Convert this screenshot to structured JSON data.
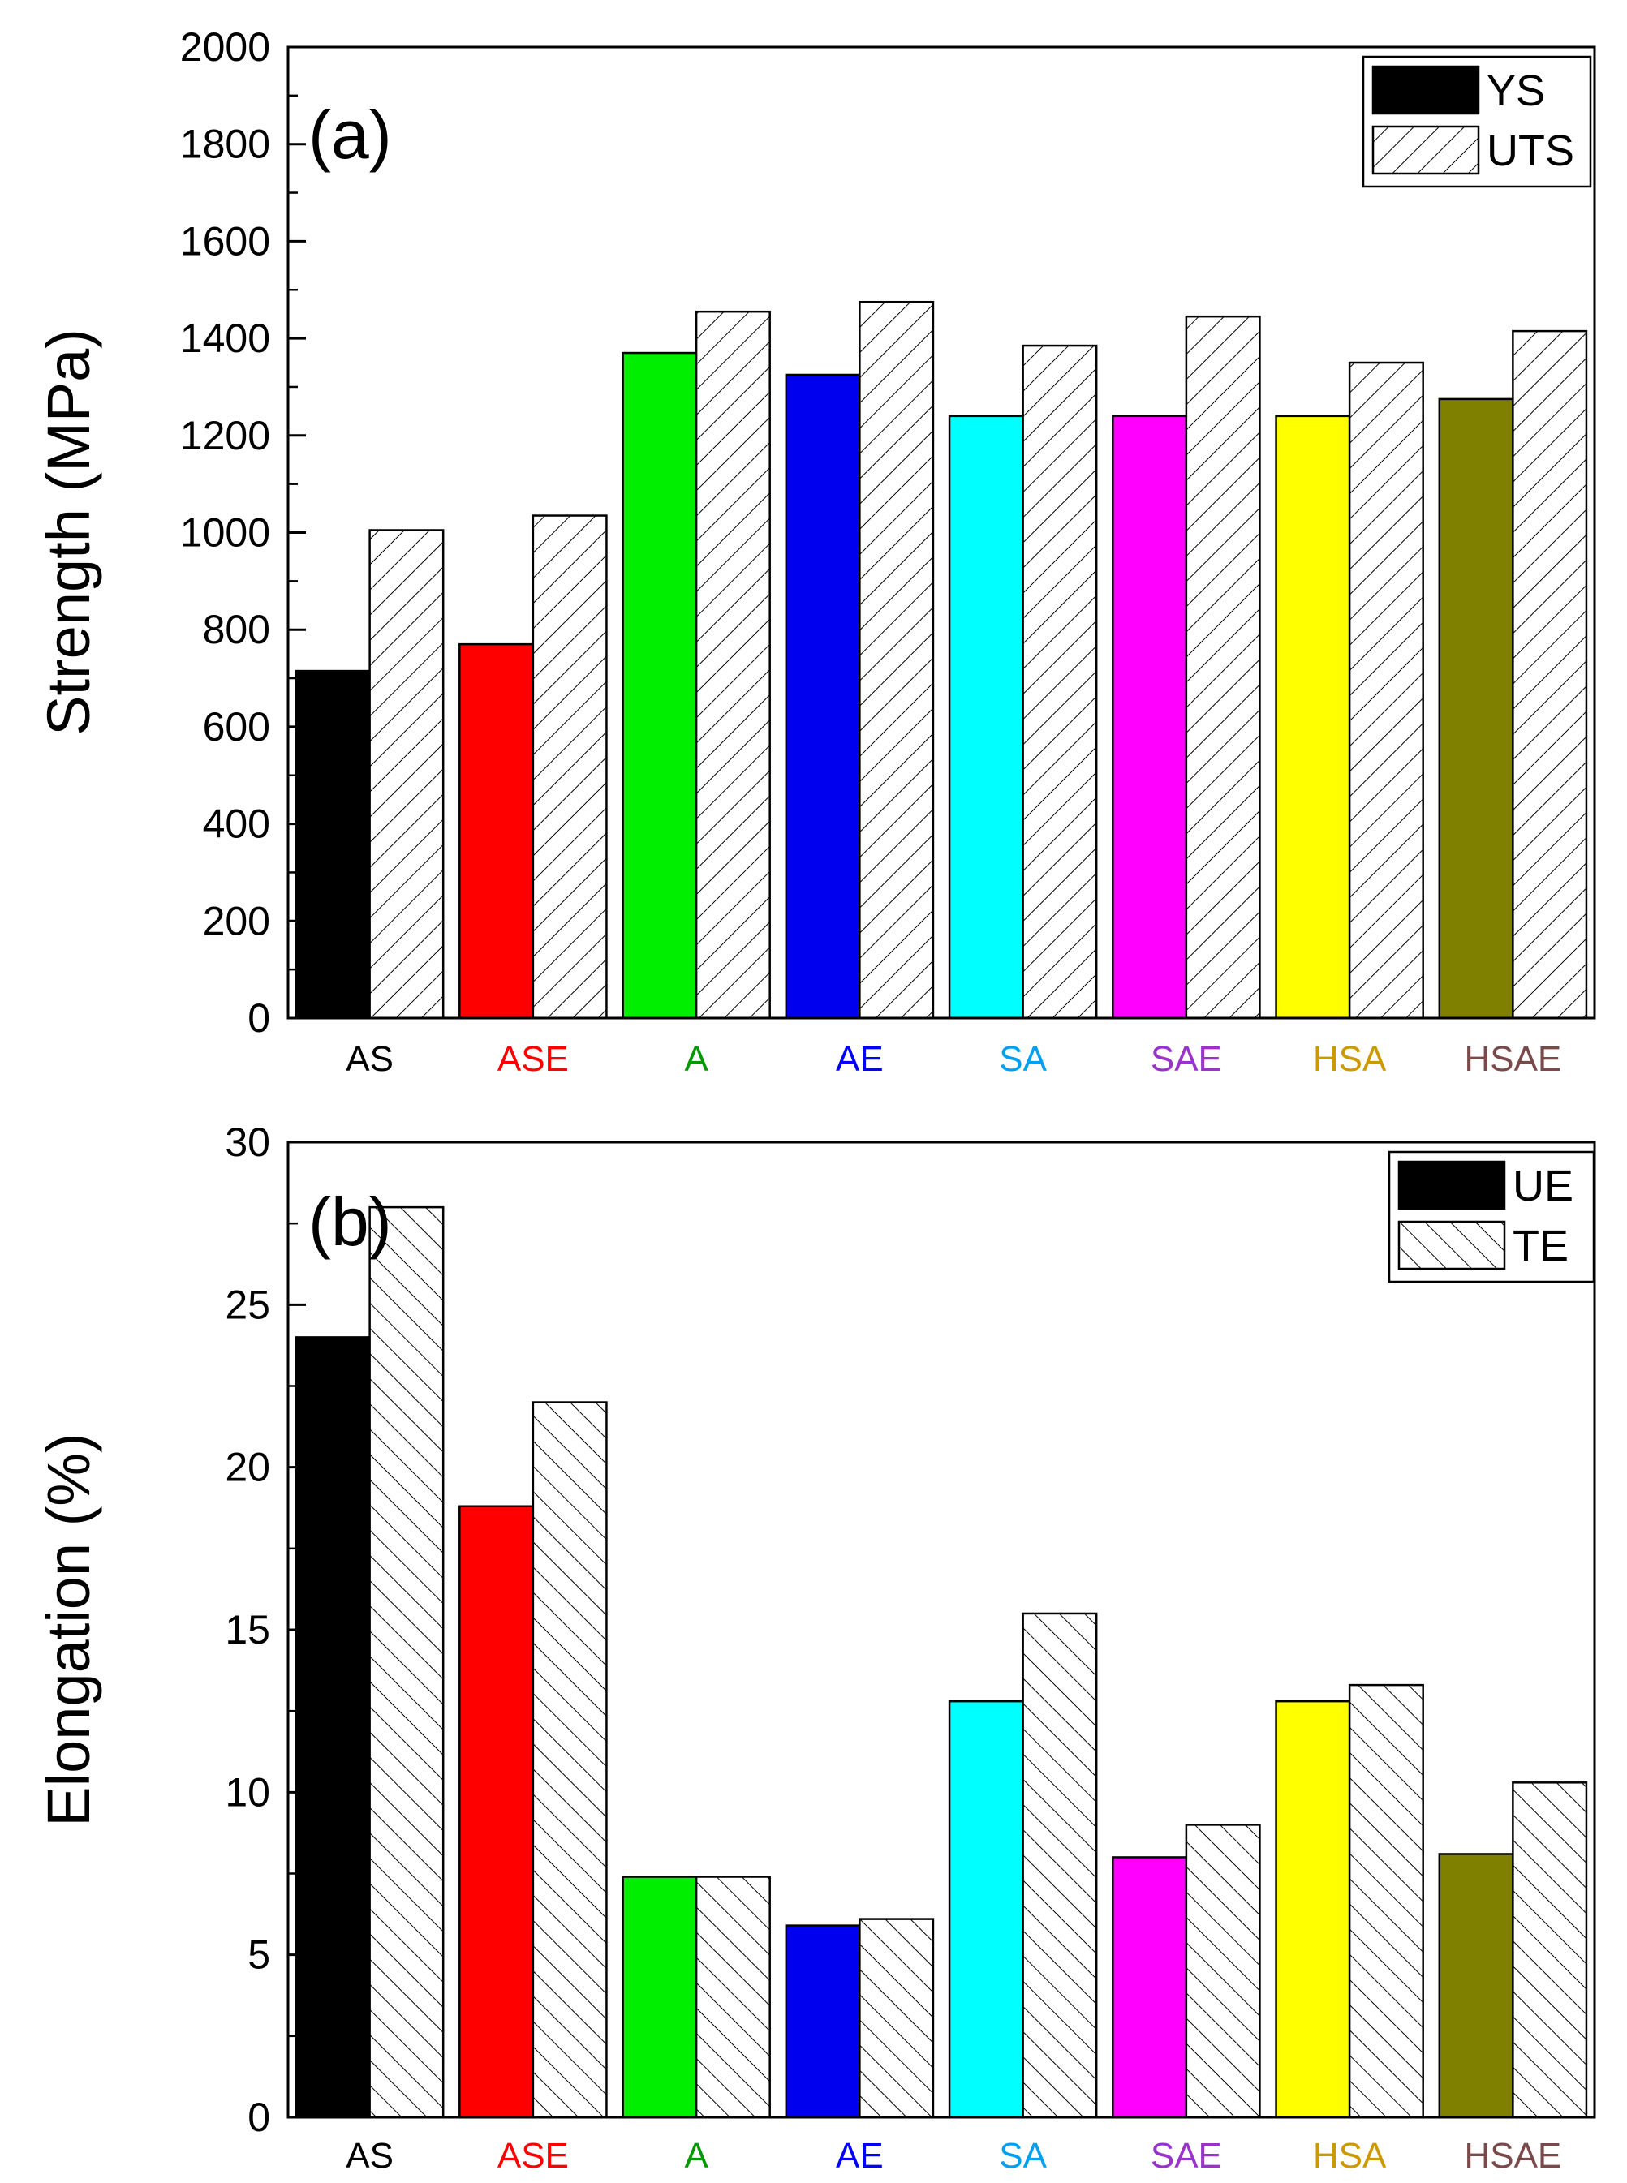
{
  "chart_data": [
    {
      "type": "bar",
      "panel": "(a)",
      "ylabel": "Strength (MPa)",
      "xlabel": "",
      "ylim": [
        0,
        2000
      ],
      "ytick_step": 200,
      "categories": [
        "AS",
        "ASE",
        "A",
        "AE",
        "SA",
        "SAE",
        "HSA",
        "HSAE"
      ],
      "category_colors": [
        "#000000",
        "#ff0000",
        "#009900",
        "#0000ff",
        "#00a0f0",
        "#9933cc",
        "#cc9900",
        "#7a4a4a"
      ],
      "bar_colors": [
        "#000000",
        "#ff0000",
        "#00ee00",
        "#0000ee",
        "#00ffff",
        "#ff00ff",
        "#ffff00",
        "#808000"
      ],
      "series": [
        {
          "name": "YS",
          "style": "solid",
          "values": [
            715,
            770,
            1370,
            1325,
            1240,
            1240,
            1240,
            1275
          ]
        },
        {
          "name": "UTS",
          "style": "hatch",
          "values": [
            1005,
            1035,
            1455,
            1475,
            1385,
            1445,
            1350,
            1415
          ]
        }
      ],
      "legend": "top-right"
    },
    {
      "type": "bar",
      "panel": "(b)",
      "ylabel": "Elongation (%)",
      "xlabel": "",
      "ylim": [
        0,
        30
      ],
      "ytick_step": 5,
      "categories": [
        "AS",
        "ASE",
        "A",
        "AE",
        "SA",
        "SAE",
        "HSA",
        "HSAE"
      ],
      "category_colors": [
        "#000000",
        "#ff0000",
        "#009900",
        "#0000ff",
        "#00a0f0",
        "#9933cc",
        "#cc9900",
        "#7a4a4a"
      ],
      "bar_colors": [
        "#000000",
        "#ff0000",
        "#00ee00",
        "#0000ee",
        "#00ffff",
        "#ff00ff",
        "#ffff00",
        "#808000"
      ],
      "series": [
        {
          "name": "UE",
          "style": "solid",
          "values": [
            24.0,
            18.8,
            7.4,
            5.9,
            12.8,
            8.0,
            12.8,
            8.1
          ]
        },
        {
          "name": "TE",
          "style": "hatch",
          "values": [
            28.0,
            22.0,
            7.4,
            6.1,
            15.5,
            9.0,
            13.3,
            10.3
          ]
        }
      ],
      "legend": "top-right"
    }
  ]
}
